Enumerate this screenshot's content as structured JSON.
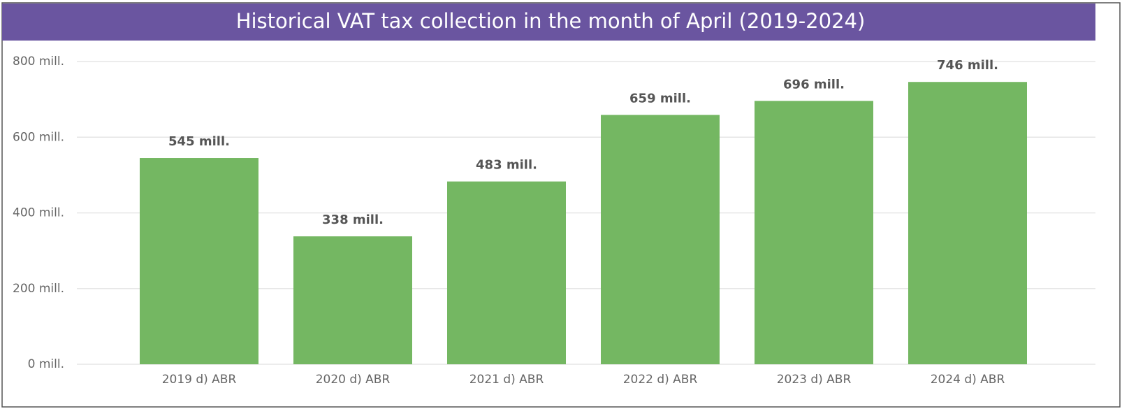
{
  "chart_data": {
    "type": "bar",
    "title": "Historical VAT tax collection in the month of April (2019-2024)",
    "categories": [
      "2019 d) ABR",
      "2020 d) ABR",
      "2021 d) ABR",
      "2022 d) ABR",
      "2023 d) ABR",
      "2024 d) ABR"
    ],
    "values": [
      545,
      338,
      483,
      659,
      696,
      746
    ],
    "value_labels": [
      "545 mill.",
      "338 mill.",
      "483 mill.",
      "659 mill.",
      "696 mill.",
      "746 mill."
    ],
    "color": "#74b762",
    "ylim": [
      0,
      800
    ],
    "yticks": [
      {
        "value": 0,
        "label": "0 mill."
      },
      {
        "value": 200,
        "label": "200 mill."
      },
      {
        "value": 400,
        "label": "400 mill."
      },
      {
        "value": 600,
        "label": "600 mill."
      },
      {
        "value": 800,
        "label": "800 mill."
      }
    ],
    "grid": true
  }
}
